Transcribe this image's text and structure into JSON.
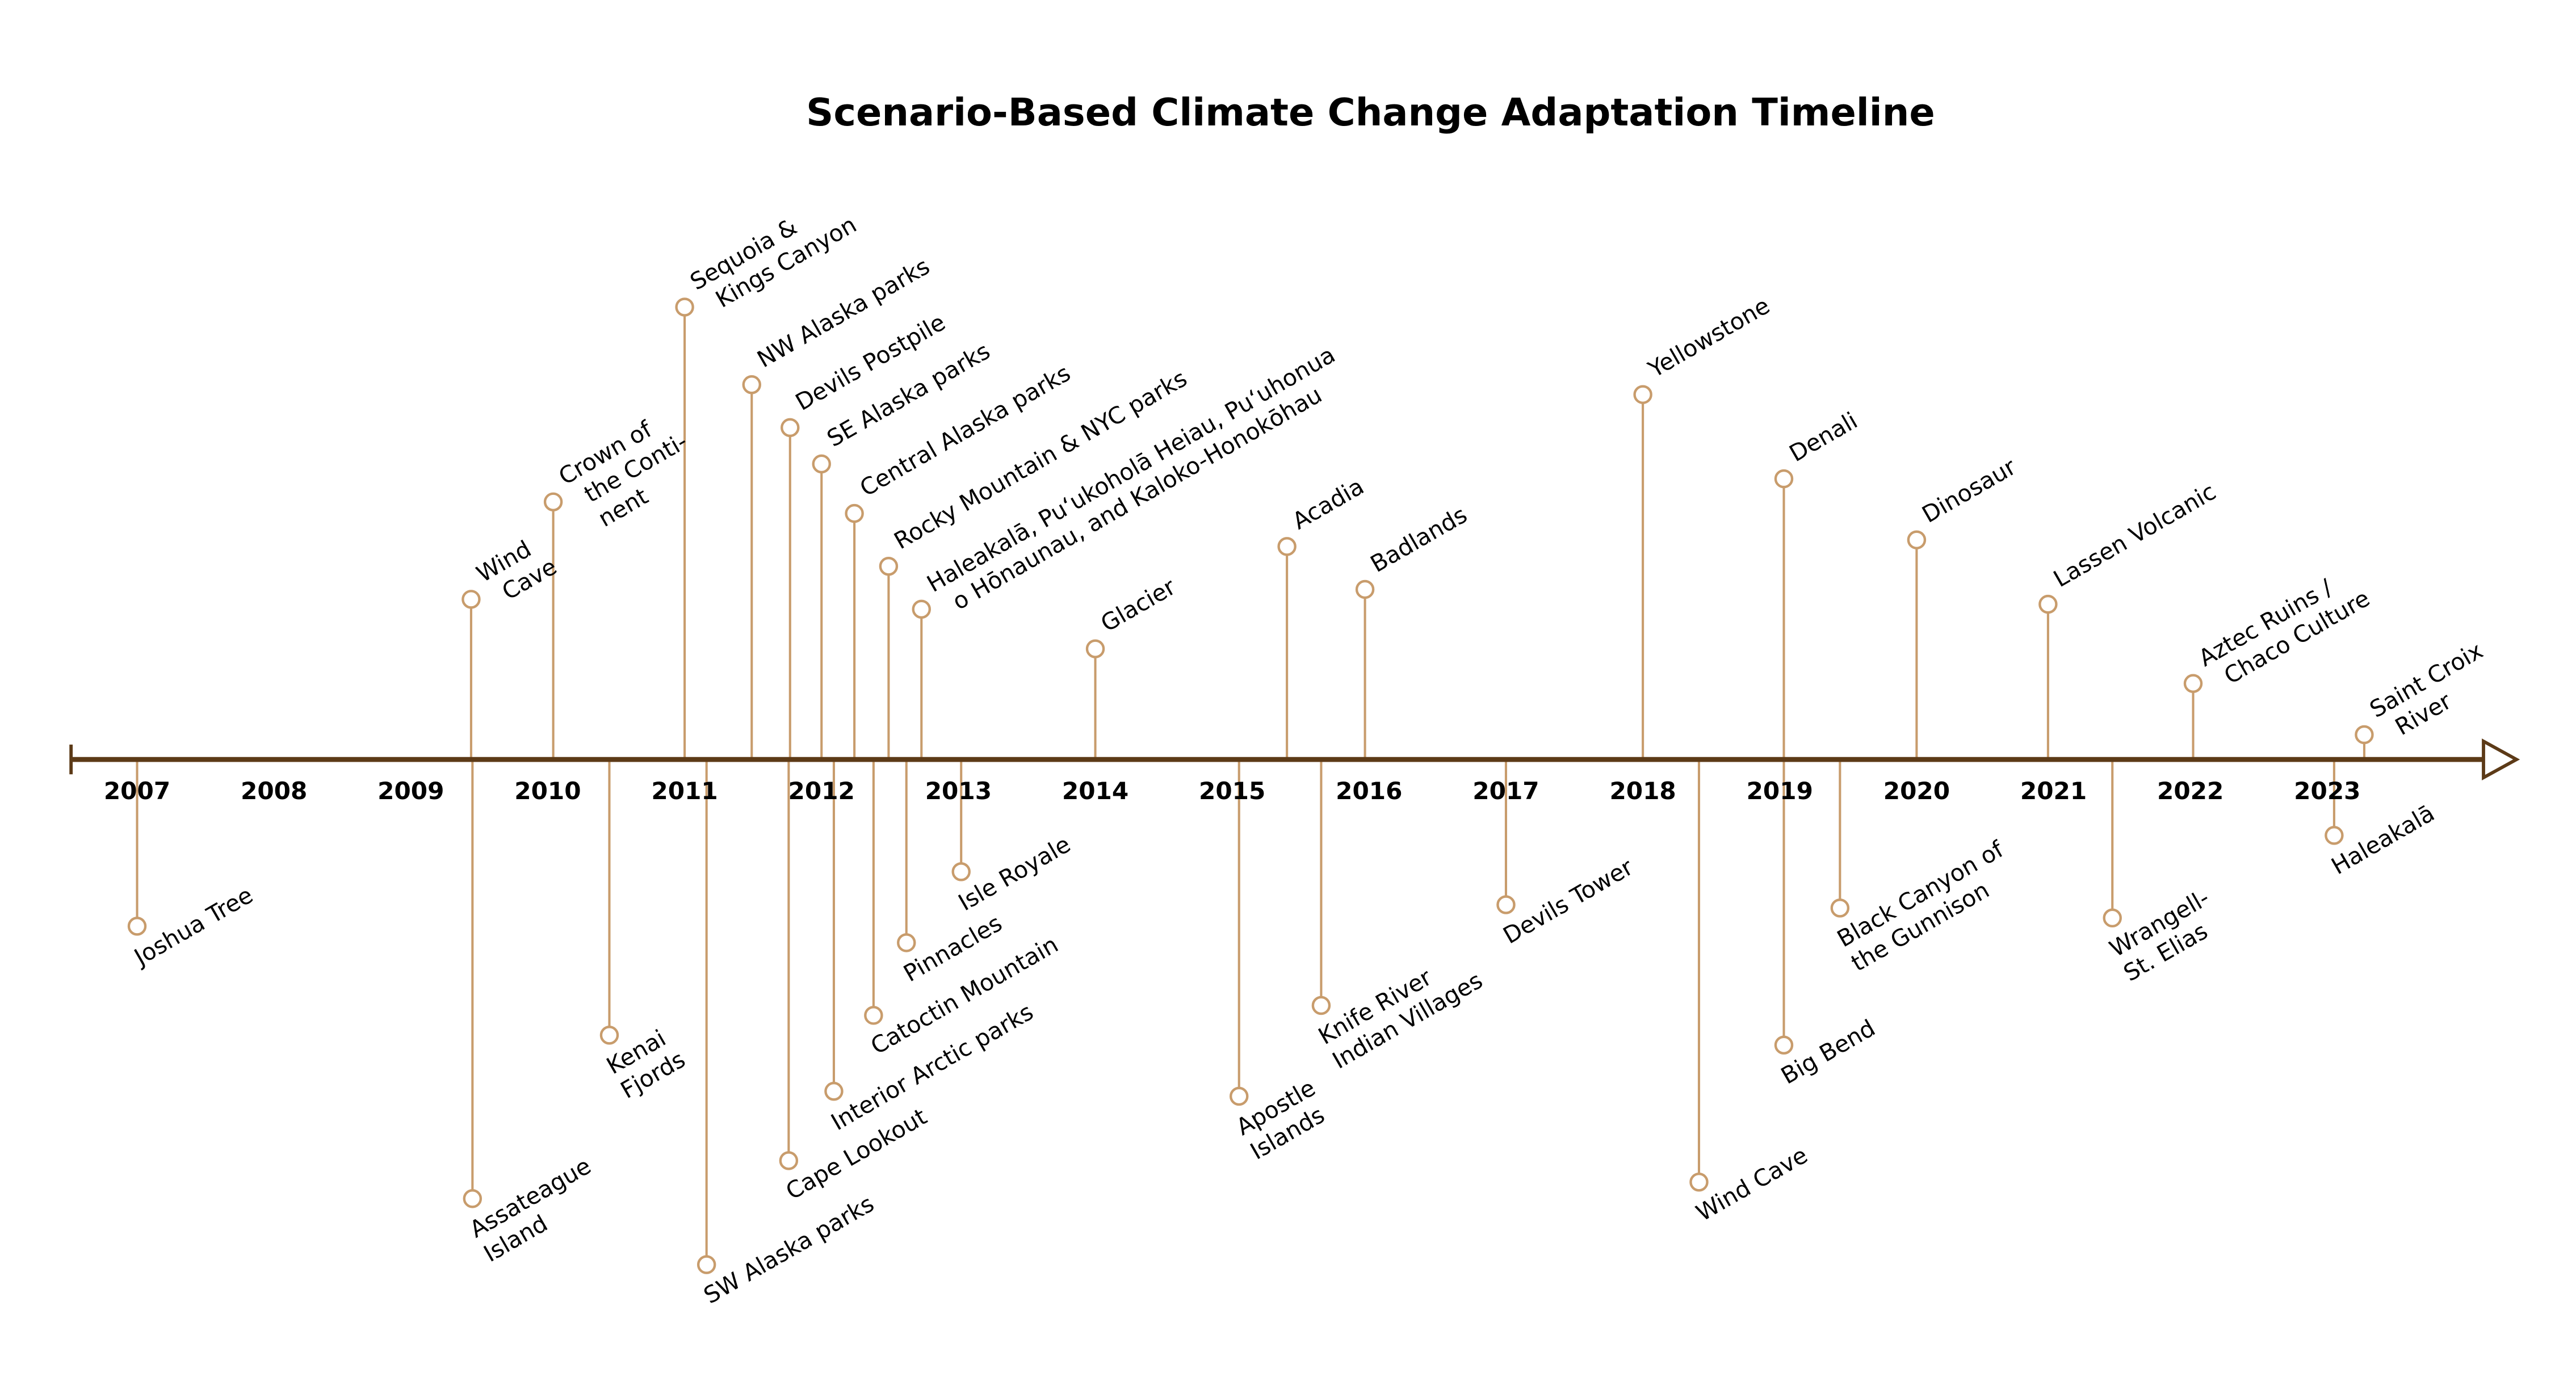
{
  "chart_data": {
    "type": "timeline",
    "title": "Scenario-Based Climate Change Adaptation Timeline",
    "xlim": [
      2006.5,
      2024.5
    ],
    "x_tick_labels": [
      "2007",
      "2008",
      "2009",
      "2010",
      "2011",
      "2012",
      "2013",
      "2014",
      "2015",
      "2016",
      "2017",
      "2018",
      "2019",
      "2020",
      "2021",
      "2022",
      "2023"
    ],
    "colors": {
      "axis": "#5c3a17",
      "stem": "#c89c6c",
      "marker_fill": "#ffffff",
      "text": "#000000"
    },
    "events": [
      {
        "year": 2007.0,
        "side": "below",
        "label_lines": [
          "Joshua Tree"
        ]
      },
      {
        "year": 2009.44,
        "side": "above",
        "label_lines": [
          "Wind",
          "Cave"
        ]
      },
      {
        "year": 2009.45,
        "side": "below",
        "label_lines": [
          "Assateague",
          "Island"
        ]
      },
      {
        "year": 2010.04,
        "side": "above",
        "label_lines": [
          "Crown of",
          "the Conti-",
          "nent"
        ]
      },
      {
        "year": 2010.45,
        "side": "below",
        "label_lines": [
          "Kenai",
          "Fjords"
        ]
      },
      {
        "year": 2011.0,
        "side": "above",
        "label_lines": [
          "Sequoia &",
          "Kings Canyon"
        ]
      },
      {
        "year": 2011.16,
        "side": "below",
        "label_lines": [
          "SW Alaska parks"
        ]
      },
      {
        "year": 2011.49,
        "side": "above",
        "label_lines": [
          "NW Alaska parks"
        ]
      },
      {
        "year": 2011.76,
        "side": "below",
        "label_lines": [
          "Cape Lookout"
        ]
      },
      {
        "year": 2011.77,
        "side": "above",
        "label_lines": [
          "Devils Postpile"
        ]
      },
      {
        "year": 2012.0,
        "side": "above",
        "label_lines": [
          "SE Alaska parks"
        ]
      },
      {
        "year": 2012.09,
        "side": "below",
        "label_lines": [
          "Interior Arctic parks"
        ]
      },
      {
        "year": 2012.24,
        "side": "above",
        "label_lines": [
          "Central Alaska parks"
        ]
      },
      {
        "year": 2012.38,
        "side": "below",
        "label_lines": [
          "Catoctin Mountain"
        ]
      },
      {
        "year": 2012.49,
        "side": "above",
        "label_lines": [
          "Rocky Mountain & NYC parks"
        ]
      },
      {
        "year": 2012.62,
        "side": "below",
        "label_lines": [
          "Pinnacles"
        ]
      },
      {
        "year": 2012.73,
        "side": "above",
        "label_lines": [
          "Haleakalā, Puʻukoholā Heiau, Puʻuhonua",
          "o Hōnaunau, and Kaloko-Honokōhau"
        ]
      },
      {
        "year": 2013.02,
        "side": "below",
        "label_lines": [
          "Isle Royale"
        ]
      },
      {
        "year": 2014.0,
        "side": "above",
        "label_lines": [
          "Glacier"
        ]
      },
      {
        "year": 2015.05,
        "side": "below",
        "label_lines": [
          "Apostle",
          "Islands"
        ]
      },
      {
        "year": 2015.4,
        "side": "above",
        "label_lines": [
          "Acadia"
        ]
      },
      {
        "year": 2015.65,
        "side": "below",
        "label_lines": [
          "Knife River",
          "Indian Villages"
        ]
      },
      {
        "year": 2015.97,
        "side": "above",
        "label_lines": [
          "Badlands"
        ]
      },
      {
        "year": 2017.0,
        "side": "below",
        "label_lines": [
          "Devils Tower"
        ]
      },
      {
        "year": 2018.0,
        "side": "above",
        "label_lines": [
          "Yellowstone"
        ]
      },
      {
        "year": 2018.41,
        "side": "below",
        "label_lines": [
          "Wind Cave"
        ]
      },
      {
        "year": 2019.03,
        "side": "above",
        "label_lines": [
          "Denali"
        ]
      },
      {
        "year": 2019.03,
        "side": "below",
        "label_lines": [
          "Big Bend"
        ]
      },
      {
        "year": 2019.44,
        "side": "below",
        "label_lines": [
          "Black Canyon of",
          "the Gunnison"
        ]
      },
      {
        "year": 2020.0,
        "side": "above",
        "label_lines": [
          "Dinosaur"
        ]
      },
      {
        "year": 2020.96,
        "side": "above",
        "label_lines": [
          "Lassen Volcanic"
        ]
      },
      {
        "year": 2021.43,
        "side": "below",
        "label_lines": [
          "Wrangell-",
          "St. Elias"
        ]
      },
      {
        "year": 2022.02,
        "side": "above",
        "label_lines": [
          "Aztec Ruins /",
          "Chaco Culture"
        ]
      },
      {
        "year": 2023.05,
        "side": "below",
        "label_lines": [
          "Haleakalā"
        ]
      },
      {
        "year": 2023.27,
        "side": "above",
        "label_lines": [
          "Saint Croix",
          "River"
        ]
      }
    ]
  }
}
